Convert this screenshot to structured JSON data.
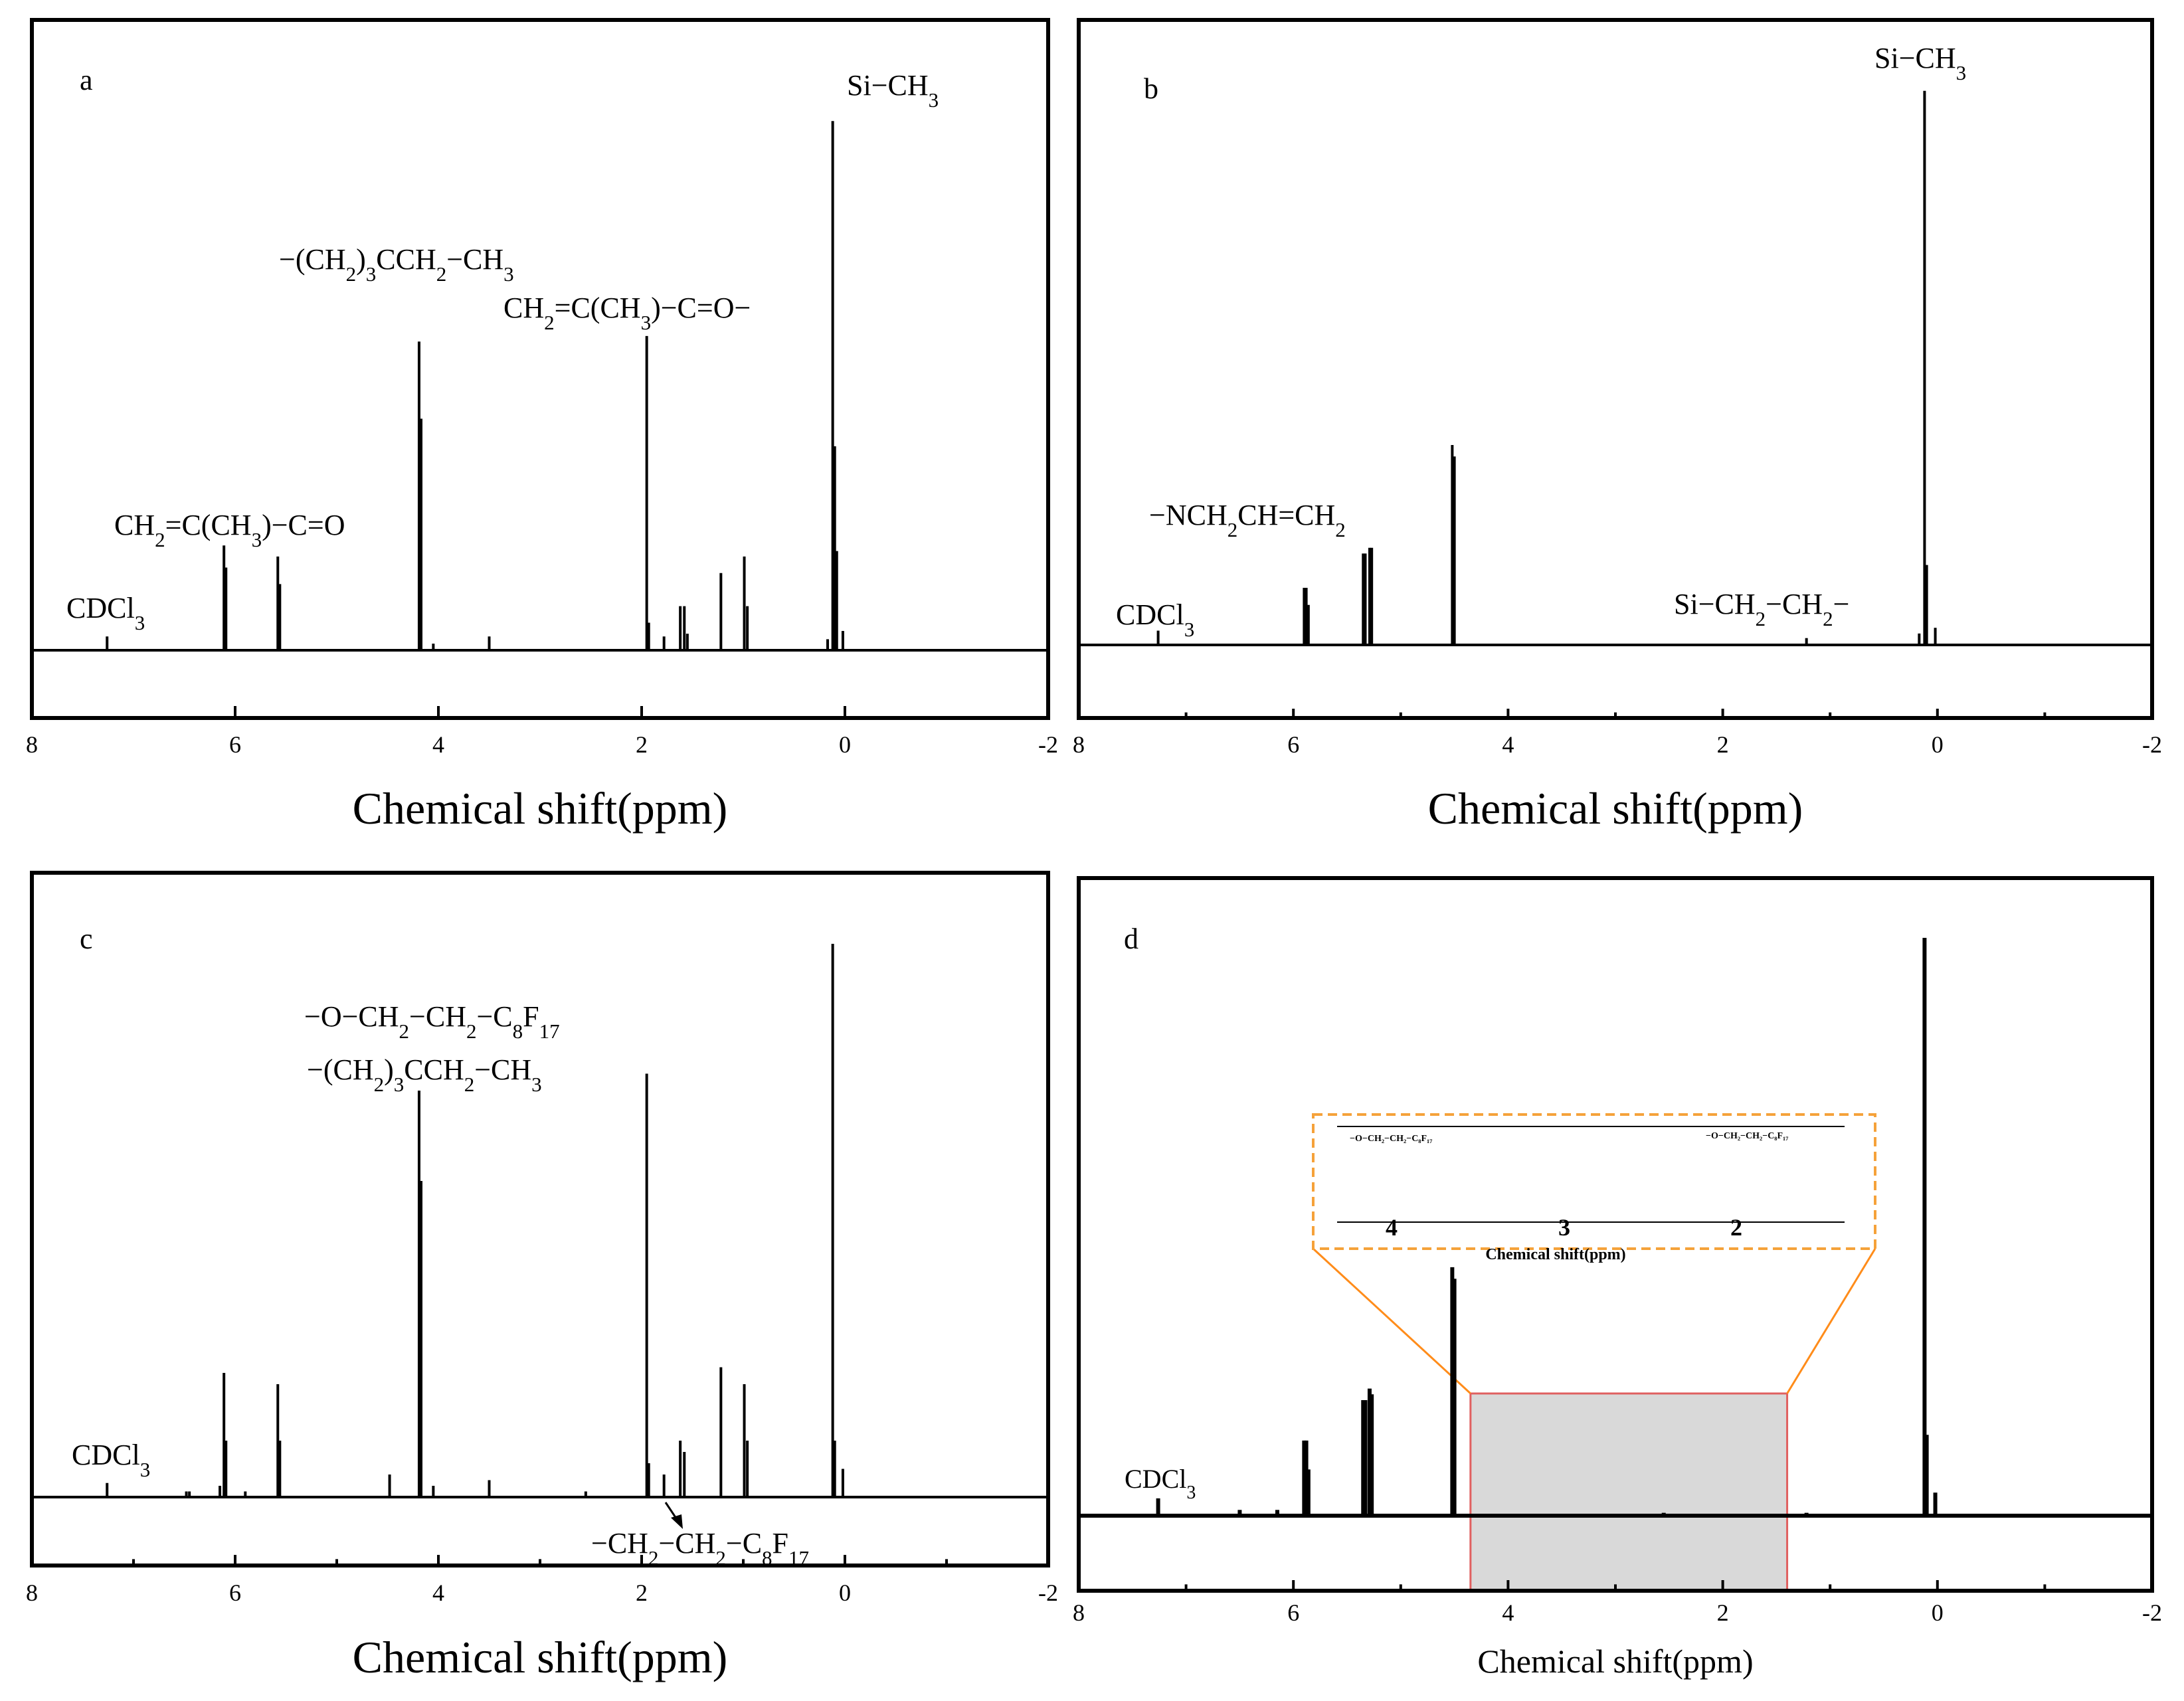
{
  "chart_data": [
    {
      "type": "line",
      "panel": "a",
      "xlabel": "Chemical shift(ppm)",
      "xlim": [
        8,
        -2
      ],
      "xticks": [
        "8",
        "6",
        "4",
        "2",
        "0",
        "-2"
      ],
      "peaks": [
        {
          "ppm": 7.26,
          "h": 0.025
        },
        {
          "ppm": 6.11,
          "h": 0.19
        },
        {
          "ppm": 6.09,
          "h": 0.15
        },
        {
          "ppm": 5.58,
          "h": 0.17
        },
        {
          "ppm": 5.56,
          "h": 0.12
        },
        {
          "ppm": 4.19,
          "h": 0.56
        },
        {
          "ppm": 4.17,
          "h": 0.42
        },
        {
          "ppm": 4.05,
          "h": 0.012
        },
        {
          "ppm": 3.5,
          "h": 0.025
        },
        {
          "ppm": 1.95,
          "h": 0.57
        },
        {
          "ppm": 1.93,
          "h": 0.05
        },
        {
          "ppm": 1.78,
          "h": 0.025
        },
        {
          "ppm": 1.62,
          "h": 0.08
        },
        {
          "ppm": 1.58,
          "h": 0.08
        },
        {
          "ppm": 1.55,
          "h": 0.03
        },
        {
          "ppm": 1.22,
          "h": 0.14
        },
        {
          "ppm": 0.99,
          "h": 0.17
        },
        {
          "ppm": 0.96,
          "h": 0.08
        },
        {
          "ppm": 0.17,
          "h": 0.02
        },
        {
          "ppm": 0.12,
          "h": 0.96
        },
        {
          "ppm": 0.1,
          "h": 0.37
        },
        {
          "ppm": 0.08,
          "h": 0.18
        },
        {
          "ppm": 0.02,
          "h": 0.035
        }
      ],
      "panel_label": "a",
      "annotations": [
        {
          "label_parts": [
            {
              "t": "CDCl"
            },
            {
              "t": "3",
              "sub": true
            }
          ]
        },
        {
          "label_parts": [
            {
              "t": "CH"
            },
            {
              "t": "2",
              "sub": true
            },
            {
              "t": "=C(CH"
            },
            {
              "t": "3",
              "sub": true
            },
            {
              "t": ")−C=O"
            }
          ]
        },
        {
          "label_parts": [
            {
              "t": "−(CH"
            },
            {
              "t": "2",
              "sub": true
            },
            {
              "t": ")"
            },
            {
              "t": "3",
              "sub": true
            },
            {
              "t": "CCH"
            },
            {
              "t": "2",
              "sub": true
            },
            {
              "t": "−CH"
            },
            {
              "t": "3",
              "sub": true
            }
          ]
        },
        {
          "label_parts": [
            {
              "t": "CH"
            },
            {
              "t": "2",
              "sub": true
            },
            {
              "t": "=C(CH"
            },
            {
              "t": "3",
              "sub": true
            },
            {
              "t": ")−C=O−"
            }
          ]
        },
        {
          "label_parts": [
            {
              "t": "Si−CH"
            },
            {
              "t": "3",
              "sub": true
            }
          ]
        }
      ]
    },
    {
      "type": "line",
      "panel": "b",
      "xlabel": "Chemical shift(ppm)",
      "xlim": [
        8,
        -2
      ],
      "xticks": [
        "8",
        "6",
        "4",
        "2",
        "0",
        "-2"
      ],
      "peaks": [
        {
          "ppm": 7.26,
          "h": 0.025
        },
        {
          "ppm": 5.9,
          "h": 0.1
        },
        {
          "ppm": 5.88,
          "h": 0.1
        },
        {
          "ppm": 5.86,
          "h": 0.07
        },
        {
          "ppm": 5.35,
          "h": 0.16
        },
        {
          "ppm": 5.33,
          "h": 0.16
        },
        {
          "ppm": 5.29,
          "h": 0.17
        },
        {
          "ppm": 5.27,
          "h": 0.17
        },
        {
          "ppm": 4.52,
          "h": 0.35
        },
        {
          "ppm": 4.5,
          "h": 0.33
        },
        {
          "ppm": 1.22,
          "h": 0.012
        },
        {
          "ppm": 0.12,
          "h": 0.97
        },
        {
          "ppm": 0.1,
          "h": 0.14
        },
        {
          "ppm": 0.17,
          "h": 0.02
        },
        {
          "ppm": 0.02,
          "h": 0.03
        }
      ],
      "panel_label": "b",
      "annotations": [
        {
          "label_parts": [
            {
              "t": "CDCl"
            },
            {
              "t": "3",
              "sub": true
            }
          ]
        },
        {
          "label_parts": [
            {
              "t": "−NCH"
            },
            {
              "t": "2",
              "sub": true
            },
            {
              "t": "CH=CH"
            },
            {
              "t": "2",
              "sub": true
            }
          ]
        },
        {
          "label_parts": [
            {
              "t": "Si−CH"
            },
            {
              "t": "2",
              "sub": true
            },
            {
              "t": "−CH"
            },
            {
              "t": "2",
              "sub": true
            },
            {
              "t": "−"
            }
          ]
        },
        {
          "label_parts": [
            {
              "t": "Si−CH"
            },
            {
              "t": "3",
              "sub": true
            }
          ]
        }
      ]
    },
    {
      "type": "line",
      "panel": "c",
      "xlabel": "Chemical shift(ppm)",
      "xlim": [
        8,
        -2
      ],
      "xticks": [
        "8",
        "6",
        "4",
        "2",
        "0",
        "-2"
      ],
      "peaks": [
        {
          "ppm": 7.26,
          "h": 0.025
        },
        {
          "ppm": 6.48,
          "h": 0.01
        },
        {
          "ppm": 6.45,
          "h": 0.01
        },
        {
          "ppm": 6.15,
          "h": 0.02
        },
        {
          "ppm": 6.11,
          "h": 0.22
        },
        {
          "ppm": 6.09,
          "h": 0.1
        },
        {
          "ppm": 5.9,
          "h": 0.01
        },
        {
          "ppm": 5.58,
          "h": 0.2
        },
        {
          "ppm": 5.56,
          "h": 0.1
        },
        {
          "ppm": 4.48,
          "h": 0.04
        },
        {
          "ppm": 4.19,
          "h": 0.72
        },
        {
          "ppm": 4.17,
          "h": 0.56
        },
        {
          "ppm": 4.05,
          "h": 0.02
        },
        {
          "ppm": 3.5,
          "h": 0.03
        },
        {
          "ppm": 2.55,
          "h": 0.01
        },
        {
          "ppm": 1.95,
          "h": 0.75
        },
        {
          "ppm": 1.93,
          "h": 0.06
        },
        {
          "ppm": 1.78,
          "h": 0.04
        },
        {
          "ppm": 1.62,
          "h": 0.1
        },
        {
          "ppm": 1.58,
          "h": 0.08
        },
        {
          "ppm": 1.22,
          "h": 0.23
        },
        {
          "ppm": 0.99,
          "h": 0.2
        },
        {
          "ppm": 0.96,
          "h": 0.1
        },
        {
          "ppm": 0.12,
          "h": 0.98
        },
        {
          "ppm": 0.1,
          "h": 0.1
        },
        {
          "ppm": 0.02,
          "h": 0.05
        }
      ],
      "panel_label": "c",
      "annotations": [
        {
          "label_parts": [
            {
              "t": "CDCl"
            },
            {
              "t": "3",
              "sub": true
            }
          ]
        },
        {
          "label_parts": [
            {
              "t": "−O−CH"
            },
            {
              "t": "2",
              "sub": true
            },
            {
              "t": "−CH"
            },
            {
              "t": "2",
              "sub": true
            },
            {
              "t": "−C"
            },
            {
              "t": "8",
              "sub": true
            },
            {
              "t": "F"
            },
            {
              "t": "17",
              "sub": true
            }
          ]
        },
        {
          "label_parts": [
            {
              "t": "−(CH"
            },
            {
              "t": "2",
              "sub": true
            },
            {
              "t": ")"
            },
            {
              "t": "3",
              "sub": true
            },
            {
              "t": "CCH"
            },
            {
              "t": "2",
              "sub": true
            },
            {
              "t": "−CH"
            },
            {
              "t": "3",
              "sub": true
            }
          ]
        },
        {
          "label_parts": [
            {
              "t": "−CH"
            },
            {
              "t": "2",
              "sub": true
            },
            {
              "t": "−CH"
            },
            {
              "t": "2",
              "sub": true
            },
            {
              "t": "−C"
            },
            {
              "t": "8",
              "sub": true
            },
            {
              "t": "F"
            },
            {
              "t": "17",
              "sub": true
            }
          ]
        }
      ]
    },
    {
      "type": "line",
      "panel": "d",
      "xlabel": "Chemical shift(ppm)",
      "xlim": [
        8,
        -2
      ],
      "xticks": [
        "8",
        "6",
        "4",
        "2",
        "0",
        "-2"
      ],
      "peaks": [
        {
          "ppm": 7.26,
          "h": 0.03
        },
        {
          "ppm": 6.5,
          "h": 0.01
        },
        {
          "ppm": 6.15,
          "h": 0.01
        },
        {
          "ppm": 5.9,
          "h": 0.13
        },
        {
          "ppm": 5.88,
          "h": 0.13
        },
        {
          "ppm": 5.86,
          "h": 0.08
        },
        {
          "ppm": 5.35,
          "h": 0.2
        },
        {
          "ppm": 5.33,
          "h": 0.2
        },
        {
          "ppm": 5.29,
          "h": 0.22
        },
        {
          "ppm": 5.27,
          "h": 0.21
        },
        {
          "ppm": 4.52,
          "h": 0.43
        },
        {
          "ppm": 4.5,
          "h": 0.41
        },
        {
          "ppm": 2.55,
          "h": 0.005
        },
        {
          "ppm": 1.22,
          "h": 0.005
        },
        {
          "ppm": 0.12,
          "h": 1.0
        },
        {
          "ppm": 0.1,
          "h": 0.14
        },
        {
          "ppm": 0.02,
          "h": 0.04
        }
      ],
      "panel_label": "d",
      "annotations": [
        {
          "label_parts": [
            {
              "t": "CDCl"
            },
            {
              "t": "3",
              "sub": true
            }
          ]
        }
      ],
      "inset": {
        "xlabel": "Chemical shift(ppm)",
        "xticks": [
          "4",
          "3",
          "2"
        ],
        "labels": [
          "−O−CH₂−CH₂−C₈F₁₇",
          "−O−CH₂−CH₂−C₈F₁₇"
        ]
      }
    }
  ],
  "colors": {
    "inset_border": "#f5a23a",
    "zoom_line": "#ff8c1a",
    "highlight_fill": "#d9d9d9",
    "highlight_border": "#e06060"
  }
}
